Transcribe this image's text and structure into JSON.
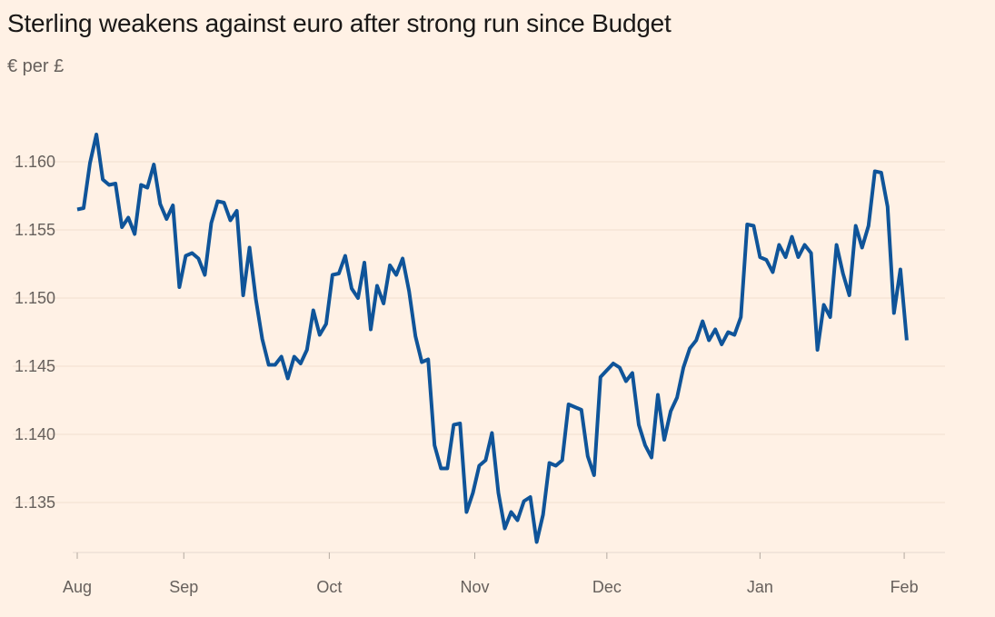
{
  "chart_data": {
    "type": "line",
    "title": "Sterling weakens against euro after strong run since Budget",
    "ylabel": "€ per £",
    "xlabel": "",
    "x_unit": "trading day index (Aug to early Feb)",
    "ylim": [
      1.131,
      1.163
    ],
    "xlim": [
      0,
      135
    ],
    "grid": true,
    "y_ticks": [
      {
        "value": 1.16,
        "label": "1.160"
      },
      {
        "value": 1.155,
        "label": "1.155"
      },
      {
        "value": 1.15,
        "label": "1.150"
      },
      {
        "value": 1.145,
        "label": "1.145"
      },
      {
        "value": 1.14,
        "label": "1.140"
      },
      {
        "value": 1.135,
        "label": "1.135"
      }
    ],
    "x_ticks": [
      {
        "value": 0,
        "label": "Aug"
      },
      {
        "value": 16.7,
        "label": "Sep"
      },
      {
        "value": 39.5,
        "label": "Oct"
      },
      {
        "value": 62.3,
        "label": "Nov"
      },
      {
        "value": 83.0,
        "label": "Dec"
      },
      {
        "value": 107.0,
        "label": "Jan"
      },
      {
        "value": 129.6,
        "label": "Feb"
      }
    ],
    "series": [
      {
        "name": "EUR per GBP",
        "color": "#0f5499",
        "values": [
          1.1565,
          1.1566,
          1.1599,
          1.162,
          1.1587,
          1.1583,
          1.1584,
          1.1552,
          1.1559,
          1.1547,
          1.1583,
          1.1581,
          1.1598,
          1.1569,
          1.1558,
          1.1568,
          1.1508,
          1.1531,
          1.1533,
          1.1529,
          1.1517,
          1.1555,
          1.1571,
          1.157,
          1.1557,
          1.1564,
          1.1502,
          1.1537,
          1.1499,
          1.147,
          1.1451,
          1.1451,
          1.1457,
          1.1441,
          1.1457,
          1.1452,
          1.1462,
          1.1491,
          1.1473,
          1.1481,
          1.1517,
          1.1518,
          1.1531,
          1.1507,
          1.15,
          1.1526,
          1.1477,
          1.1509,
          1.1496,
          1.1524,
          1.1517,
          1.1529,
          1.1505,
          1.1472,
          1.1453,
          1.1455,
          1.1392,
          1.1375,
          1.1375,
          1.1407,
          1.1408,
          1.1343,
          1.1357,
          1.1377,
          1.1381,
          1.1401,
          1.1357,
          1.1331,
          1.1343,
          1.1337,
          1.1351,
          1.1354,
          1.1321,
          1.1341,
          1.1379,
          1.1377,
          1.1381,
          1.1422,
          1.142,
          1.1418,
          1.1384,
          1.137,
          1.1442,
          1.1447,
          1.1452,
          1.1449,
          1.1439,
          1.1445,
          1.1407,
          1.1392,
          1.1383,
          1.1429,
          1.1396,
          1.1417,
          1.1427,
          1.1449,
          1.1463,
          1.1469,
          1.1483,
          1.1469,
          1.1477,
          1.1466,
          1.1475,
          1.1473,
          1.1486,
          1.1554,
          1.1553,
          1.153,
          1.1528,
          1.1519,
          1.1539,
          1.153,
          1.1545,
          1.153,
          1.1539,
          1.1533,
          1.1462,
          1.1495,
          1.1486,
          1.1539,
          1.1518,
          1.1502,
          1.1553,
          1.1537,
          1.1553,
          1.1593,
          1.1592,
          1.1567,
          1.1489,
          1.1521,
          1.1469
        ]
      }
    ]
  }
}
